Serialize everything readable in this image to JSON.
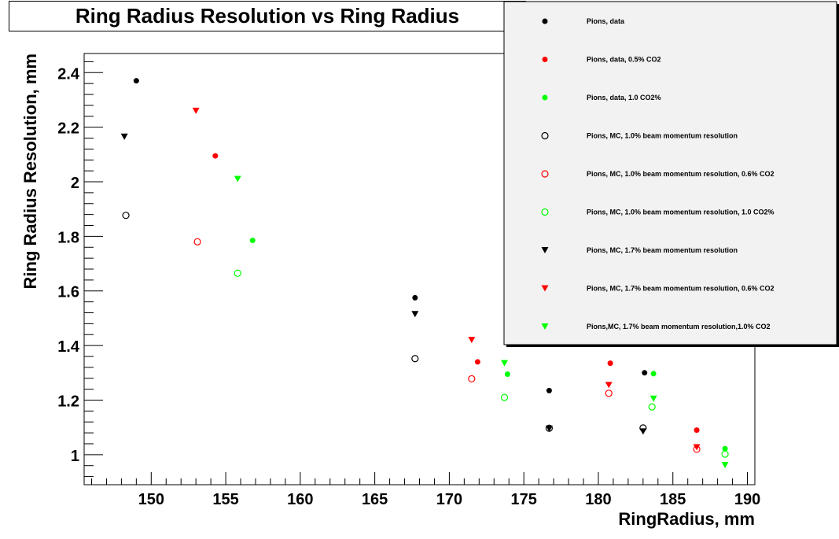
{
  "chart_data": {
    "type": "scatter",
    "title": "Ring Radius Resolution vs Ring Radius",
    "xlabel": "RingRadius, mm",
    "ylabel": "Ring Radius Resolution, mm",
    "xlim": [
      145.5,
      190.5
    ],
    "ylim": [
      0.89,
      2.47
    ],
    "x_ticks": [
      150,
      155,
      160,
      165,
      170,
      175,
      180,
      185,
      190
    ],
    "y_ticks": [
      1,
      1.2,
      1.4,
      1.6,
      1.8,
      2,
      2.2,
      2.4
    ],
    "legend_position": "top-right",
    "grid": false,
    "series": [
      {
        "name": "Pions, data",
        "color": "#000000",
        "marker": "filled-circle",
        "x": [
          149.0,
          167.7,
          176.7,
          183.1
        ],
        "y": [
          2.37,
          1.575,
          1.235,
          1.3
        ]
      },
      {
        "name": "Pions, data, 0.5% CO2",
        "color": "#ff0000",
        "marker": "filled-circle",
        "x": [
          154.3,
          171.9,
          180.8,
          186.6
        ],
        "y": [
          2.095,
          1.34,
          1.335,
          1.09
        ]
      },
      {
        "name": "Pions, data, 1.0 CO2%",
        "color": "#00ff00",
        "marker": "filled-circle",
        "x": [
          156.8,
          173.9,
          183.7,
          188.5
        ],
        "y": [
          1.785,
          1.295,
          1.297,
          1.022
        ]
      },
      {
        "name": "Pions, MC, 1.0% beam momentum resolution",
        "color": "#000000",
        "marker": "open-circle",
        "x": [
          148.3,
          167.7,
          176.7,
          183.0
        ],
        "y": [
          1.877,
          1.352,
          1.097,
          1.098
        ]
      },
      {
        "name": "Pions, MC, 1.0% beam momentum resolution, 0.6% CO2",
        "color": "#ff0000",
        "marker": "open-circle",
        "x": [
          153.1,
          171.5,
          180.7,
          186.6
        ],
        "y": [
          1.78,
          1.278,
          1.225,
          1.02
        ]
      },
      {
        "name": "Pions, MC, 1.0% beam momentum resolution, 1.0 CO2%",
        "color": "#00ff00",
        "marker": "open-circle",
        "x": [
          155.8,
          173.7,
          183.6,
          188.5
        ],
        "y": [
          1.665,
          1.21,
          1.175,
          1.002
        ]
      },
      {
        "name": "Pions, MC, 1.7% beam momentum resolution",
        "color": "#000000",
        "marker": "filled-triangle-down",
        "x": [
          148.2,
          167.7,
          176.7,
          183.0
        ],
        "y": [
          2.165,
          1.515,
          1.095,
          1.085
        ]
      },
      {
        "name": "Pions, MC, 1.7% beam momentum resolution, 0.6% CO2",
        "color": "#ff0000",
        "marker": "filled-triangle-down",
        "x": [
          153.0,
          171.5,
          180.7,
          186.6
        ],
        "y": [
          2.26,
          1.42,
          1.255,
          1.027
        ]
      },
      {
        "name": "Pions,MC, 1.7% beam momentum resolution,1.0% CO2",
        "color": "#00ff00",
        "marker": "filled-triangle-down",
        "x": [
          155.8,
          173.7,
          183.7,
          188.5
        ],
        "y": [
          2.01,
          1.335,
          1.205,
          0.962
        ]
      }
    ]
  }
}
